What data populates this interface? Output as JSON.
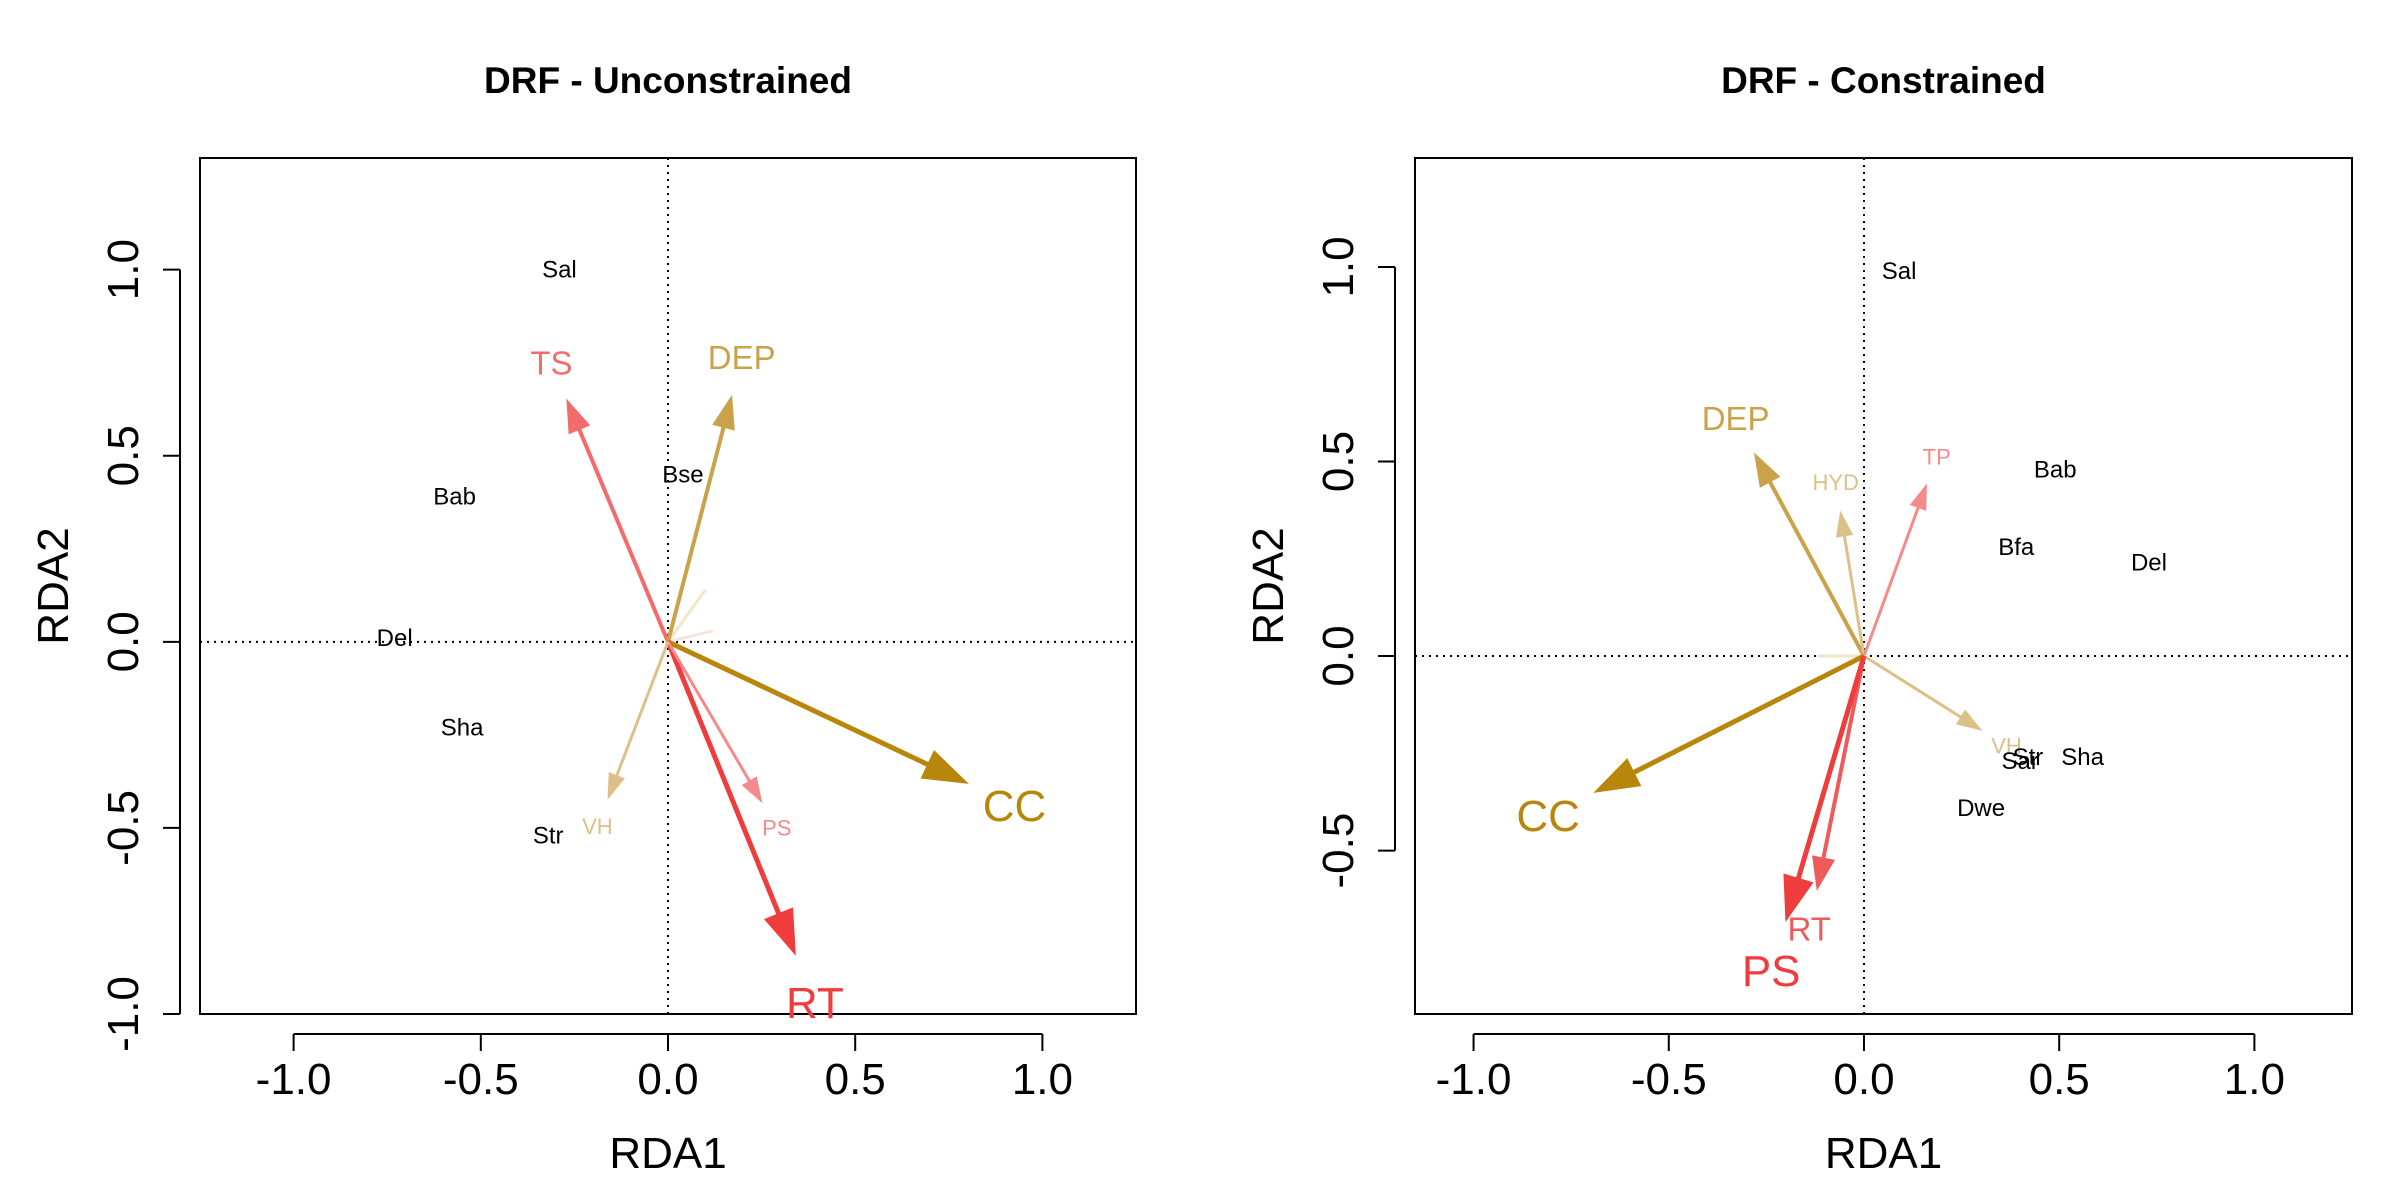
{
  "chart_data": [
    {
      "type": "biplot",
      "title": "DRF - Unconstrained",
      "xlabel": "RDA1",
      "ylabel": "RDA2",
      "xlim": [
        -1.25,
        1.25
      ],
      "ylim": [
        -1.0,
        1.3
      ],
      "xticks": [
        -1.0,
        -0.5,
        0.0,
        0.5,
        1.0
      ],
      "xtick_labels": [
        "-1.0",
        "-0.5",
        "0.0",
        "0.5",
        "1.0"
      ],
      "yticks": [
        -1.0,
        -0.5,
        0.0,
        0.5,
        1.0
      ],
      "ytick_labels": [
        "-1.0",
        "-0.5",
        "0.0",
        "0.5",
        "1.0"
      ],
      "reference_lines": {
        "x": 0,
        "y": 0,
        "style": "dotted"
      },
      "arrows": [
        {
          "label": "TS",
          "x": -0.27,
          "y": 0.65,
          "color": "#f36b6b",
          "size": "medium"
        },
        {
          "label": "DEP",
          "x": 0.17,
          "y": 0.66,
          "color": "#c9a24a",
          "size": "medium"
        },
        {
          "label": "CC",
          "x": 0.8,
          "y": -0.38,
          "color": "#b8860b",
          "size": "large"
        },
        {
          "label": "RT",
          "x": 0.34,
          "y": -0.84,
          "color": "#ef3d3d",
          "size": "large"
        },
        {
          "label": "PS",
          "x": 0.25,
          "y": -0.43,
          "color": "#f58a8a",
          "size": "small"
        },
        {
          "label": "VH",
          "x": -0.16,
          "y": -0.42,
          "color": "#dcc087",
          "size": "small"
        }
      ],
      "faint_arrows": [
        {
          "x": 0.1,
          "y": 0.14,
          "color": "#f2e6c8"
        },
        {
          "x": 0.12,
          "y": 0.03,
          "color": "#f5e3dd"
        }
      ],
      "species": [
        {
          "label": "Sal",
          "x": -0.29,
          "y": 1.0
        },
        {
          "label": "Bse",
          "x": 0.04,
          "y": 0.45
        },
        {
          "label": "Bab",
          "x": -0.57,
          "y": 0.39
        },
        {
          "label": "Del",
          "x": -0.73,
          "y": 0.01
        },
        {
          "label": "Sha",
          "x": -0.55,
          "y": -0.23
        },
        {
          "label": "Str",
          "x": -0.32,
          "y": -0.52
        }
      ]
    },
    {
      "type": "biplot",
      "title": "DRF - Constrained",
      "xlabel": "RDA1",
      "ylabel": "RDA2",
      "xlim": [
        -1.15,
        1.25
      ],
      "ylim": [
        -0.92,
        1.28
      ],
      "xticks": [
        -1.0,
        -0.5,
        0.0,
        0.5,
        1.0
      ],
      "xtick_labels": [
        "-1.0",
        "-0.5",
        "0.0",
        "0.5",
        "1.0"
      ],
      "yticks": [
        -0.5,
        0.0,
        0.5,
        1.0
      ],
      "ytick_labels": [
        "-0.5",
        "0.0",
        "0.5",
        "1.0"
      ],
      "reference_lines": {
        "x": 0,
        "y": 0,
        "style": "dotted"
      },
      "arrows": [
        {
          "label": "DEP",
          "x": -0.28,
          "y": 0.52,
          "color": "#c9a24a",
          "size": "medium"
        },
        {
          "label": "HYD",
          "x": -0.06,
          "y": 0.37,
          "color": "#dcc087",
          "size": "small"
        },
        {
          "label": "TP",
          "x": 0.16,
          "y": 0.44,
          "color": "#f58a8a",
          "size": "small"
        },
        {
          "label": "VH",
          "x": 0.3,
          "y": -0.19,
          "color": "#dcc087",
          "size": "small"
        },
        {
          "label": "CC",
          "x": -0.69,
          "y": -0.35,
          "color": "#b8860b",
          "size": "large"
        },
        {
          "label": "RT",
          "x": -0.12,
          "y": -0.6,
          "color": "#ef5a5a",
          "size": "medium"
        },
        {
          "label": "PS",
          "x": -0.2,
          "y": -0.68,
          "color": "#ef3d3d",
          "size": "large"
        }
      ],
      "faint_arrows": [
        {
          "x": -0.12,
          "y": 0.0,
          "color": "#f2e6c8"
        }
      ],
      "species": [
        {
          "label": "Sal",
          "x": 0.09,
          "y": 0.99
        },
        {
          "label": "Bab",
          "x": 0.49,
          "y": 0.48
        },
        {
          "label": "Bfa",
          "x": 0.39,
          "y": 0.28
        },
        {
          "label": "Del",
          "x": 0.73,
          "y": 0.24
        },
        {
          "label": "Str",
          "x": 0.42,
          "y": -0.26
        },
        {
          "label": "Sar",
          "x": 0.4,
          "y": -0.27
        },
        {
          "label": "Sha",
          "x": 0.56,
          "y": -0.26
        },
        {
          "label": "Dwe",
          "x": 0.3,
          "y": -0.39
        }
      ]
    }
  ]
}
